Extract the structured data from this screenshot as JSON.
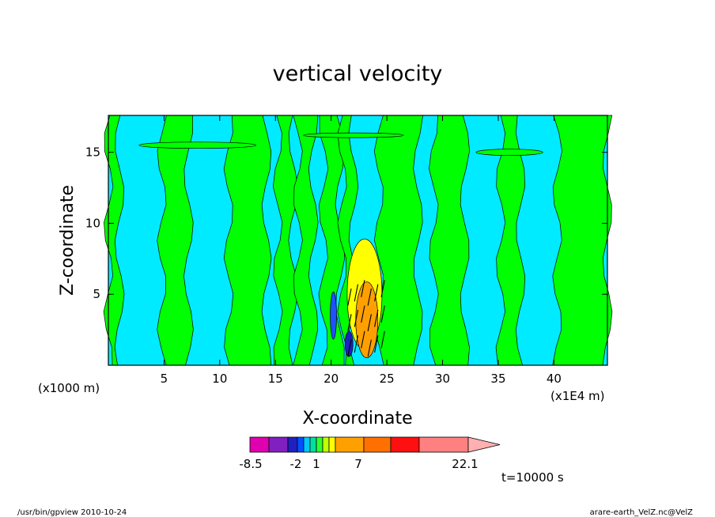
{
  "chart_data": {
    "type": "heatmap",
    "title": "vertical velocity",
    "xlabel": "X-coordinate",
    "ylabel": "Z-coordinate",
    "x_unit_left": "(x1000 m)",
    "x_unit_right": "(x1E4 m)",
    "xlim": [
      0,
      44.8
    ],
    "ylim": [
      0,
      17.6
    ],
    "x_ticks": [
      5,
      10,
      15,
      20,
      25,
      30,
      35,
      40
    ],
    "y_ticks": [
      5,
      10,
      15
    ],
    "colorbar": {
      "colors": [
        "#e000b0",
        "#8020c0",
        "#2020c0",
        "#0050ff",
        "#00c8ff",
        "#00e0a0",
        "#30ff30",
        "#c0ff00",
        "#ffff00",
        "#ffa000",
        "#ff7000",
        "#ff1010",
        "#ff8080",
        "#ffb0b0"
      ],
      "labels": [
        "-8.5",
        "-2",
        "1",
        "7",
        "22.1"
      ]
    },
    "time_label": "t=10000 s"
  },
  "footer": {
    "left": "/usr/bin/gpview 2010-10-24",
    "right": "arare-earth_VelZ.nc@VelZ"
  }
}
